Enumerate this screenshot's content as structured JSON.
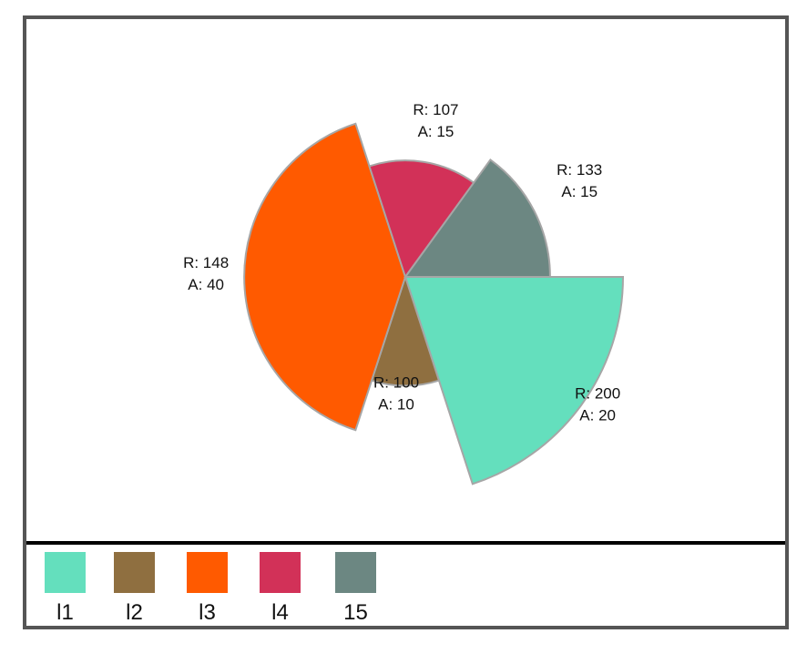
{
  "chart_data": {
    "type": "pie",
    "subtype": "variable-radius pie (radius & angle encode values)",
    "title": "",
    "categories": [
      "l1",
      "l2",
      "l3",
      "l4",
      "15"
    ],
    "series": [
      {
        "name": "R",
        "values": [
          200,
          100,
          148,
          107,
          133
        ]
      },
      {
        "name": "A",
        "values": [
          20,
          10,
          40,
          15,
          15
        ]
      }
    ],
    "colors": [
      "#64dfbd",
      "#8f6f40",
      "#ff5a00",
      "#d23158",
      "#6c8782"
    ],
    "slices": [
      {
        "label": "l1",
        "r": 200,
        "a": 20,
        "color": "#64dfbd",
        "text_r": "R: 200",
        "text_a": "A: 20"
      },
      {
        "label": "l2",
        "r": 100,
        "a": 10,
        "color": "#8f6f40",
        "text_r": "R: 100",
        "text_a": "A: 10"
      },
      {
        "label": "l3",
        "r": 148,
        "a": 40,
        "color": "#ff5a00",
        "text_r": "R: 148",
        "text_a": "A: 40"
      },
      {
        "label": "l4",
        "r": 107,
        "a": 15,
        "color": "#d23158",
        "text_r": "R: 107",
        "text_a": "A: 15"
      },
      {
        "label": "15",
        "r": 133,
        "a": 15,
        "color": "#6c8782",
        "text_r": "R: 133",
        "text_a": "A: 15"
      }
    ],
    "legend_position": "bottom",
    "stroke_color": "#a6a6a6"
  },
  "legend": {
    "items": [
      {
        "label": "l1",
        "color": "#64dfbd"
      },
      {
        "label": "l2",
        "color": "#8f6f40"
      },
      {
        "label": "l3",
        "color": "#ff5a00"
      },
      {
        "label": "l4",
        "color": "#d23158"
      },
      {
        "label": "15",
        "color": "#6c8782"
      }
    ]
  }
}
